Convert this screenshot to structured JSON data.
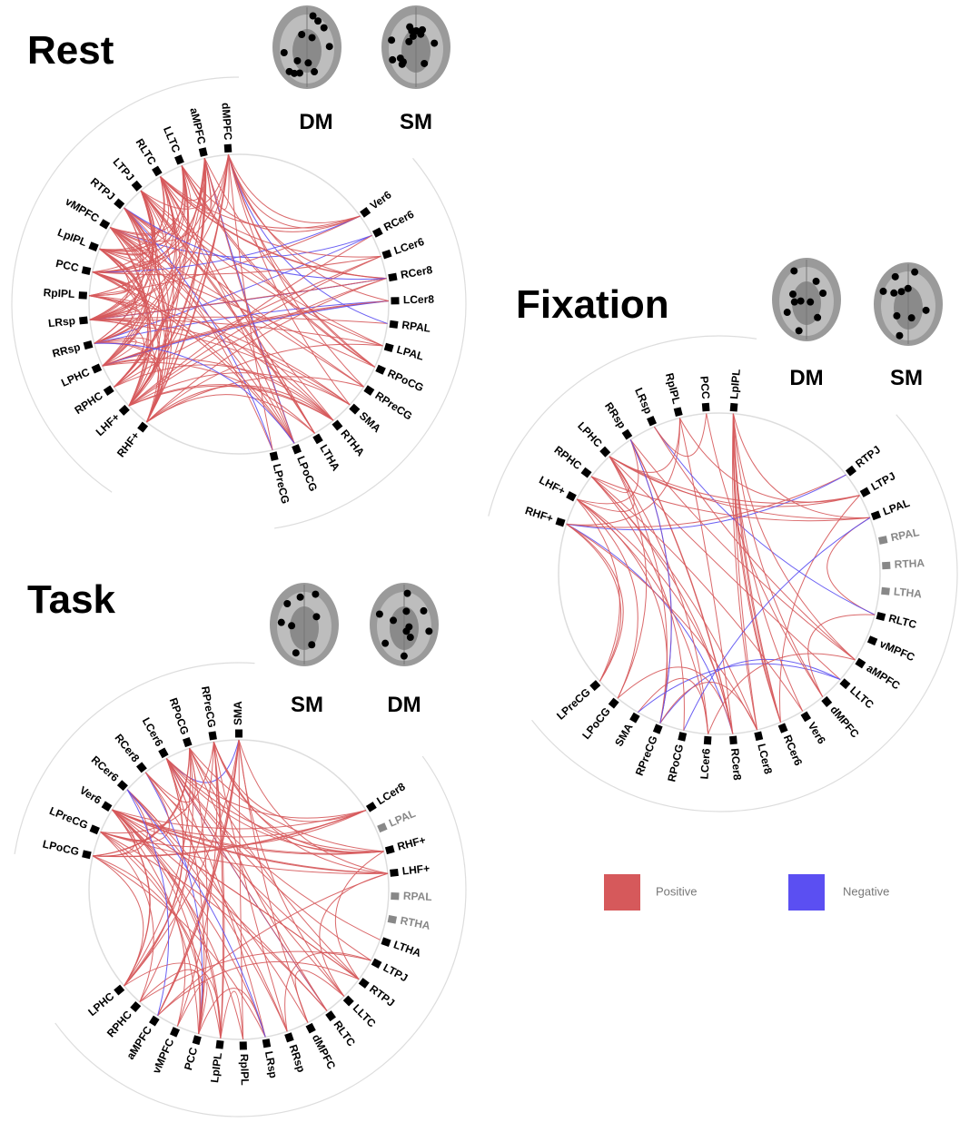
{
  "panels": [
    {
      "title": "Rest",
      "brains": [
        "DM",
        "SM"
      ],
      "groups": [
        [
          {
            "label": "dMPFC"
          },
          {
            "label": "aMPFC"
          },
          {
            "label": "LLTC"
          },
          {
            "label": "RLTC"
          },
          {
            "label": "LTPJ"
          },
          {
            "label": "RTPJ"
          },
          {
            "label": "vMPFC"
          },
          {
            "label": "LpIPL"
          },
          {
            "label": "PCC"
          },
          {
            "label": "RpIPL"
          },
          {
            "label": "LRsp"
          },
          {
            "label": "RRsp"
          },
          {
            "label": "LPHC"
          },
          {
            "label": "RPHC"
          },
          {
            "label": "LHF+"
          },
          {
            "label": "RHF+"
          }
        ],
        [
          {
            "label": "Ver6"
          },
          {
            "label": "RCer6"
          },
          {
            "label": "LCer6"
          },
          {
            "label": "RCer8"
          },
          {
            "label": "LCer8"
          },
          {
            "label": "RPAL"
          },
          {
            "label": "LPAL"
          },
          {
            "label": "RPoCG"
          },
          {
            "label": "RPreCG"
          },
          {
            "label": "SMA"
          },
          {
            "label": "RTHA"
          },
          {
            "label": "LTHA"
          },
          {
            "label": "LPoCG"
          },
          {
            "label": "LPreCG"
          }
        ]
      ]
    },
    {
      "title": "Fixation",
      "brains": [
        "DM",
        "SM"
      ],
      "groups": [
        [
          {
            "label": "LpIPL"
          },
          {
            "label": "PCC"
          },
          {
            "label": "RpIPL"
          },
          {
            "label": "LRsp"
          },
          {
            "label": "RRsp"
          },
          {
            "label": "LPHC"
          },
          {
            "label": "RPHC"
          },
          {
            "label": "LHF+"
          },
          {
            "label": "RHF+"
          }
        ],
        [
          {
            "label": "RTPJ"
          },
          {
            "label": "LTPJ"
          },
          {
            "label": "LPAL"
          },
          {
            "label": "RPAL",
            "style": "inactive"
          },
          {
            "label": "RTHA",
            "style": "inactive"
          },
          {
            "label": "LTHA",
            "style": "inactive"
          },
          {
            "label": "RLTC"
          },
          {
            "label": "vMPFC"
          },
          {
            "label": "aMPFC"
          },
          {
            "label": "LLTC"
          },
          {
            "label": "dMPFC"
          },
          {
            "label": "Ver6"
          },
          {
            "label": "RCer6"
          },
          {
            "label": "LCer8"
          },
          {
            "label": "RCer8"
          },
          {
            "label": "LCer6"
          },
          {
            "label": "RPoCG"
          },
          {
            "label": "RPreCG"
          },
          {
            "label": "SMA"
          },
          {
            "label": "LPoCG"
          },
          {
            "label": "LPreCG"
          }
        ]
      ]
    },
    {
      "title": "Task",
      "brains": [
        "SM",
        "DM"
      ],
      "groups": [
        [
          {
            "label": "SMA"
          },
          {
            "label": "RPreCG"
          },
          {
            "label": "RPoCG"
          },
          {
            "label": "LCer6"
          },
          {
            "label": "RCer8"
          },
          {
            "label": "RCer6"
          },
          {
            "label": "Ver6"
          },
          {
            "label": "LPreCG"
          },
          {
            "label": "LPoCG"
          }
        ],
        [
          {
            "label": "LCer8"
          },
          {
            "label": "LPAL",
            "style": "inactive"
          },
          {
            "label": "RHF+"
          },
          {
            "label": "LHF+"
          },
          {
            "label": "RPAL",
            "style": "inactive"
          },
          {
            "label": "RTHA",
            "style": "inactive"
          },
          {
            "label": "LTHA"
          },
          {
            "label": "LTPJ"
          },
          {
            "label": "RTPJ"
          },
          {
            "label": "LLTC"
          },
          {
            "label": "RLTC"
          },
          {
            "label": "dMPFC"
          },
          {
            "label": "RRsp"
          },
          {
            "label": "LRsp"
          },
          {
            "label": "RpIPL"
          },
          {
            "label": "LpIPL"
          },
          {
            "label": "PCC"
          },
          {
            "label": "vMPFC"
          },
          {
            "label": "aMPFC"
          },
          {
            "label": "RPHC"
          },
          {
            "label": "LPHC"
          }
        ]
      ]
    }
  ],
  "legend": [
    {
      "label": "Positive",
      "color": "#d6595b"
    },
    {
      "label": "Negative",
      "color": "#5b4ff2"
    }
  ]
}
